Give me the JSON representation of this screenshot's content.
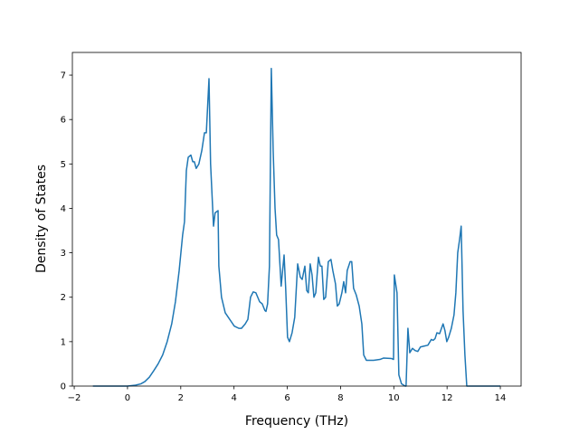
{
  "chart_data": {
    "type": "line",
    "xlabel": "Frequency (THz)",
    "ylabel": "Density of States",
    "xlim": [
      -2.07,
      14.78
    ],
    "ylim": [
      0,
      7.51
    ],
    "xticks": [
      {
        "value": -2,
        "label": "−2"
      },
      0,
      2,
      4,
      6,
      8,
      10,
      12,
      14
    ],
    "yticks": [
      0,
      1,
      2,
      3,
      4,
      5,
      6,
      7
    ],
    "grid": false,
    "series": [
      {
        "color": "#1f77b4",
        "x": [
          -1.3,
          0,
          0.3,
          0.5,
          0.65,
          0.82,
          0.99,
          1.15,
          1.32,
          1.49,
          1.66,
          1.8,
          1.94,
          2.07,
          2.14,
          2.21,
          2.28,
          2.38,
          2.45,
          2.51,
          2.58,
          2.68,
          2.79,
          2.89,
          2.96,
          3.06,
          3.12,
          3.23,
          3.29,
          3.4,
          3.43,
          3.53,
          3.67,
          3.84,
          4.01,
          4.18,
          4.28,
          4.42,
          4.52,
          4.62,
          4.72,
          4.82,
          4.96,
          5.06,
          5.16,
          5.2,
          5.26,
          5.33,
          5.4,
          5.47,
          5.54,
          5.6,
          5.67,
          5.77,
          5.88,
          5.94,
          6.01,
          6.08,
          6.18,
          6.28,
          6.39,
          6.49,
          6.56,
          6.66,
          6.73,
          6.79,
          6.86,
          6.93,
          7.0,
          7.07,
          7.17,
          7.24,
          7.3,
          7.37,
          7.44,
          7.54,
          7.64,
          7.71,
          7.81,
          7.88,
          7.95,
          8.05,
          8.12,
          8.19,
          8.25,
          8.36,
          8.42,
          8.49,
          8.59,
          8.7,
          8.8,
          8.87,
          8.97,
          9.24,
          9.48,
          9.61,
          9.92,
          9.99,
          10.02,
          10.12,
          10.19,
          10.29,
          10.43,
          10.46,
          10.53,
          10.6,
          10.7,
          10.8,
          10.9,
          11.0,
          11.14,
          11.28,
          11.41,
          11.48,
          11.55,
          11.62,
          11.72,
          11.79,
          11.85,
          11.92,
          11.99,
          12.06,
          12.16,
          12.26,
          12.33,
          12.4,
          12.47,
          12.53,
          12.6,
          12.67,
          12.74,
          14.0
        ],
        "values": [
          0,
          0,
          0.02,
          0.05,
          0.1,
          0.2,
          0.35,
          0.5,
          0.7,
          1.0,
          1.4,
          1.9,
          2.6,
          3.4,
          3.7,
          4.85,
          5.15,
          5.2,
          5.05,
          5.05,
          4.9,
          5.0,
          5.3,
          5.7,
          5.7,
          6.92,
          5.0,
          3.6,
          3.9,
          3.95,
          2.7,
          2.0,
          1.65,
          1.5,
          1.35,
          1.3,
          1.3,
          1.4,
          1.5,
          2.0,
          2.12,
          2.1,
          1.9,
          1.85,
          1.7,
          1.68,
          1.85,
          2.7,
          7.15,
          5.3,
          4.0,
          3.4,
          3.3,
          2.25,
          2.95,
          2.2,
          1.1,
          1.0,
          1.2,
          1.55,
          2.75,
          2.45,
          2.4,
          2.7,
          2.15,
          2.1,
          2.75,
          2.5,
          2.0,
          2.1,
          2.9,
          2.7,
          2.7,
          1.95,
          2.0,
          2.8,
          2.85,
          2.6,
          2.3,
          1.8,
          1.85,
          2.1,
          2.35,
          2.1,
          2.6,
          2.8,
          2.8,
          2.2,
          2.05,
          1.8,
          1.4,
          0.7,
          0.58,
          0.58,
          0.6,
          0.63,
          0.62,
          0.6,
          2.5,
          2.1,
          0.25,
          0.05,
          0,
          0,
          1.3,
          0.75,
          0.85,
          0.8,
          0.78,
          0.88,
          0.9,
          0.92,
          1.05,
          1.03,
          1.07,
          1.2,
          1.18,
          1.3,
          1.4,
          1.25,
          1.0,
          1.1,
          1.3,
          1.6,
          2.1,
          3.0,
          3.3,
          3.6,
          1.7,
          0.7,
          0,
          0
        ]
      }
    ]
  }
}
